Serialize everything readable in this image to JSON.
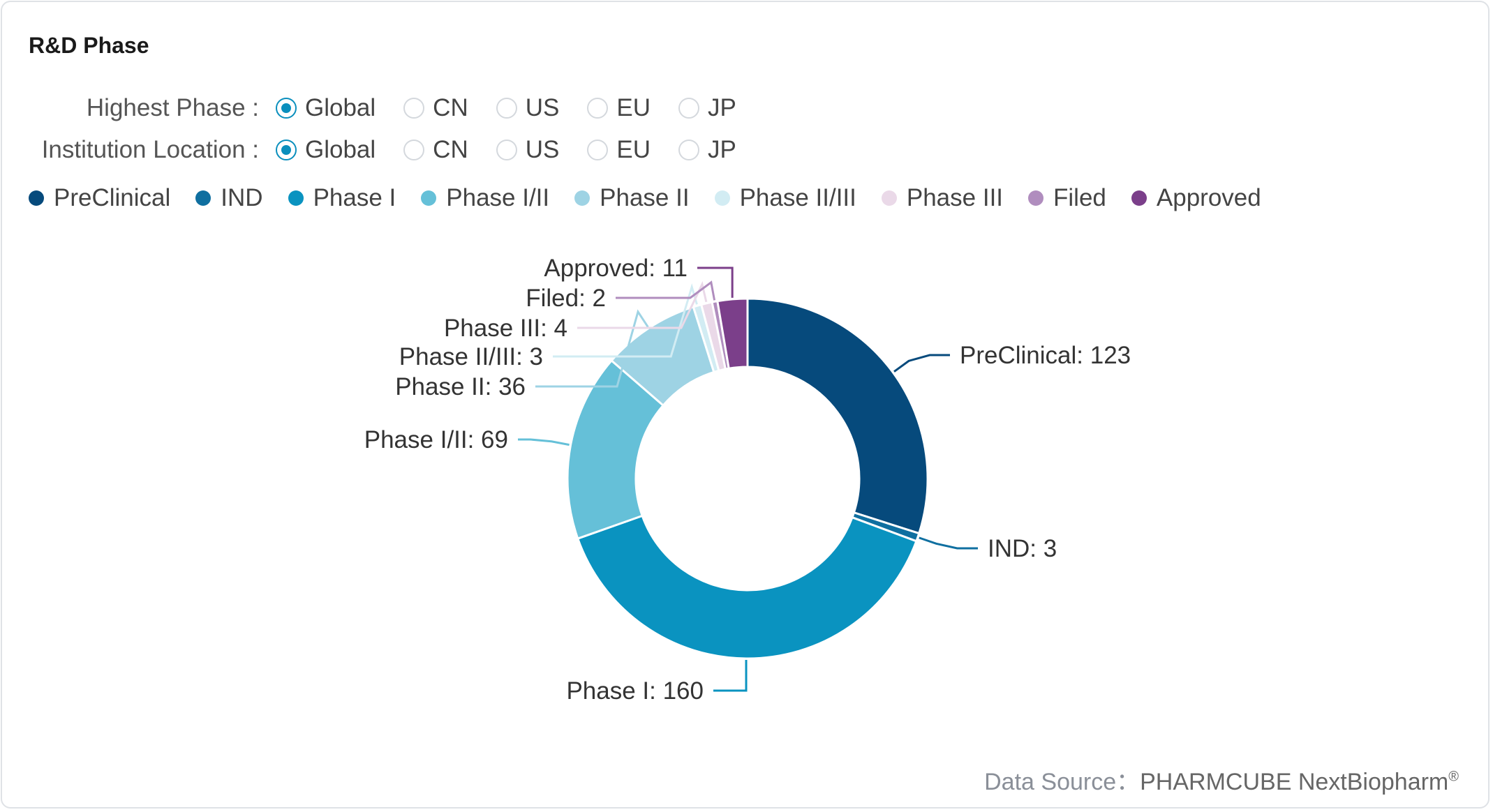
{
  "title": "R&D Phase",
  "filters": [
    {
      "label": "Highest Phase :",
      "options": [
        "Global",
        "CN",
        "US",
        "EU",
        "JP"
      ],
      "selected": "Global"
    },
    {
      "label": "Institution Location :",
      "options": [
        "Global",
        "CN",
        "US",
        "EU",
        "JP"
      ],
      "selected": "Global"
    }
  ],
  "chart_data": {
    "type": "pie",
    "donut": true,
    "legend_position": "top-left",
    "categories": [
      "PreClinical",
      "IND",
      "Phase I",
      "Phase I/II",
      "Phase II",
      "Phase II/III",
      "Phase III",
      "Filed",
      "Approved"
    ],
    "values": [
      123,
      3,
      160,
      69,
      36,
      3,
      4,
      2,
      11
    ],
    "colors": [
      "#064a7c",
      "#0f6fa0",
      "#0a93c0",
      "#65c0d8",
      "#9ed3e4",
      "#d2ecf3",
      "#ead9e8",
      "#b08dbe",
      "#7b3f8a"
    ],
    "data_labels": [
      "PreClinical: 123",
      "IND: 3",
      "Phase I: 160",
      "Phase I/II: 69",
      "Phase II: 36",
      "Phase II/III: 3",
      "Phase III: 4",
      "Filed: 2",
      "Approved: 11"
    ]
  },
  "source": {
    "label": "Data Source：",
    "value": "PHARMCUBE NextBiopharm",
    "mark": "®"
  }
}
